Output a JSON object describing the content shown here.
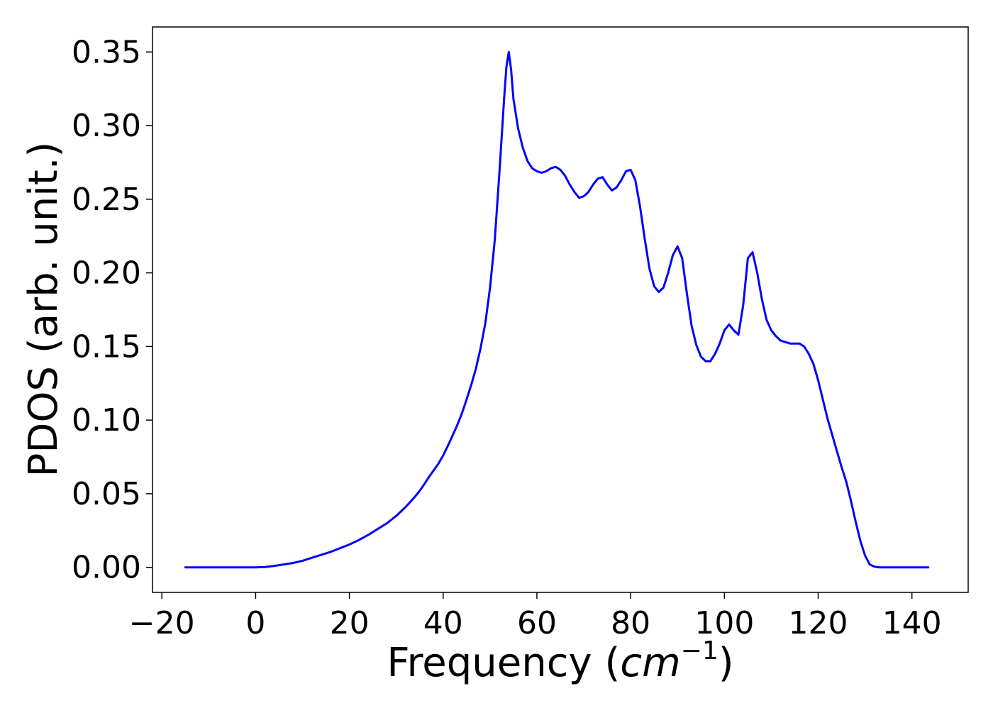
{
  "chart_data": {
    "type": "line",
    "title": "",
    "xlabel": "Frequency (",
    "xlabel_math_base": "cm",
    "xlabel_math_sup": "−1",
    "xlabel_suffix": ")",
    "ylabel": "PDOS (arb. unit.)",
    "xlim": [
      -22,
      152
    ],
    "ylim": [
      -0.017,
      0.367
    ],
    "x_ticks": [
      -20,
      0,
      20,
      40,
      60,
      80,
      100,
      120,
      140
    ],
    "x_tick_labels": [
      "−20",
      "0",
      "20",
      "40",
      "60",
      "80",
      "100",
      "120",
      "140"
    ],
    "y_ticks": [
      0.0,
      0.05,
      0.1,
      0.15,
      0.2,
      0.25,
      0.3,
      0.35
    ],
    "y_tick_labels": [
      "0.00",
      "0.05",
      "0.10",
      "0.15",
      "0.20",
      "0.25",
      "0.30",
      "0.35"
    ],
    "grid": false,
    "colors": {
      "line": "#0000ff",
      "axes": "#000000",
      "background": "#ffffff"
    },
    "series": [
      {
        "x": [
          -15,
          -10,
          -5,
          0,
          2,
          4,
          6,
          8,
          10,
          12,
          14,
          16,
          18,
          20,
          22,
          24,
          26,
          28,
          30,
          32,
          34,
          35,
          36,
          37,
          38,
          39,
          40,
          41,
          42,
          43,
          44,
          45,
          46,
          47,
          48,
          49,
          50,
          51,
          52,
          53,
          53.5,
          54,
          54.5,
          55,
          56,
          57,
          58,
          59,
          60,
          61,
          62,
          63,
          64,
          65,
          66,
          67,
          68,
          69,
          70,
          71,
          72,
          73,
          74,
          75,
          76,
          77,
          78,
          79,
          80,
          81,
          82,
          83,
          84,
          85,
          86,
          87,
          88,
          89,
          90,
          91,
          92,
          93,
          94,
          95,
          96,
          97,
          98,
          99,
          100,
          101,
          102,
          103,
          104,
          105,
          106,
          107,
          108,
          109,
          110,
          111,
          112,
          113,
          114,
          115,
          116,
          117,
          118,
          119,
          120,
          121,
          122,
          123,
          124,
          125,
          126,
          127,
          128,
          129,
          130,
          131,
          132,
          133,
          134,
          136,
          140,
          143.5
        ],
        "y": [
          0.0,
          0.0,
          0.0,
          0.0,
          0.0002,
          0.001,
          0.002,
          0.003,
          0.0045,
          0.0065,
          0.0085,
          0.0105,
          0.013,
          0.0155,
          0.0185,
          0.022,
          0.026,
          0.03,
          0.035,
          0.041,
          0.048,
          0.052,
          0.0565,
          0.0615,
          0.066,
          0.0705,
          0.076,
          0.0825,
          0.0895,
          0.0965,
          0.1045,
          0.114,
          0.124,
          0.135,
          0.149,
          0.166,
          0.19,
          0.222,
          0.268,
          0.318,
          0.34,
          0.35,
          0.338,
          0.318,
          0.298,
          0.285,
          0.276,
          0.271,
          0.269,
          0.268,
          0.269,
          0.271,
          0.272,
          0.27,
          0.266,
          0.26,
          0.255,
          0.251,
          0.252,
          0.255,
          0.26,
          0.264,
          0.265,
          0.26,
          0.256,
          0.258,
          0.263,
          0.269,
          0.27,
          0.263,
          0.245,
          0.223,
          0.203,
          0.191,
          0.187,
          0.19,
          0.2,
          0.212,
          0.218,
          0.21,
          0.186,
          0.164,
          0.151,
          0.143,
          0.14,
          0.14,
          0.145,
          0.152,
          0.161,
          0.165,
          0.161,
          0.158,
          0.178,
          0.21,
          0.214,
          0.2,
          0.182,
          0.168,
          0.161,
          0.157,
          0.154,
          0.153,
          0.152,
          0.152,
          0.152,
          0.15,
          0.145,
          0.138,
          0.127,
          0.114,
          0.101,
          0.09,
          0.079,
          0.068,
          0.058,
          0.045,
          0.031,
          0.018,
          0.008,
          0.002,
          0.0005,
          0.0,
          0.0,
          0.0,
          0.0,
          0.0
        ]
      }
    ]
  }
}
